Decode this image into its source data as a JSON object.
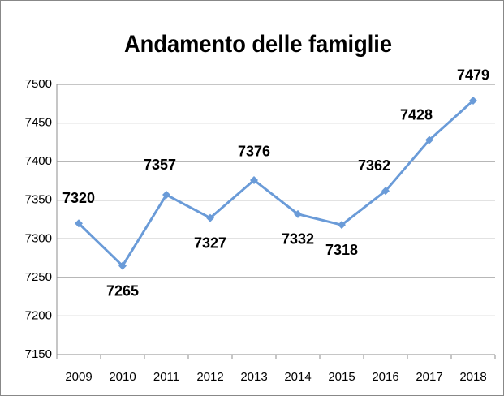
{
  "chart_data": {
    "type": "line",
    "title": "Andamento delle famiglie",
    "categories": [
      "2009",
      "2010",
      "2011",
      "2012",
      "2013",
      "2014",
      "2015",
      "2016",
      "2017",
      "2018"
    ],
    "values": [
      7320,
      7265,
      7357,
      7327,
      7376,
      7332,
      7318,
      7362,
      7428,
      7479
    ],
    "color": "#6a9bd8",
    "ylim": [
      7150,
      7500
    ],
    "yticks": [
      7150,
      7200,
      7250,
      7300,
      7350,
      7400,
      7450,
      7500
    ],
    "grid": true
  }
}
